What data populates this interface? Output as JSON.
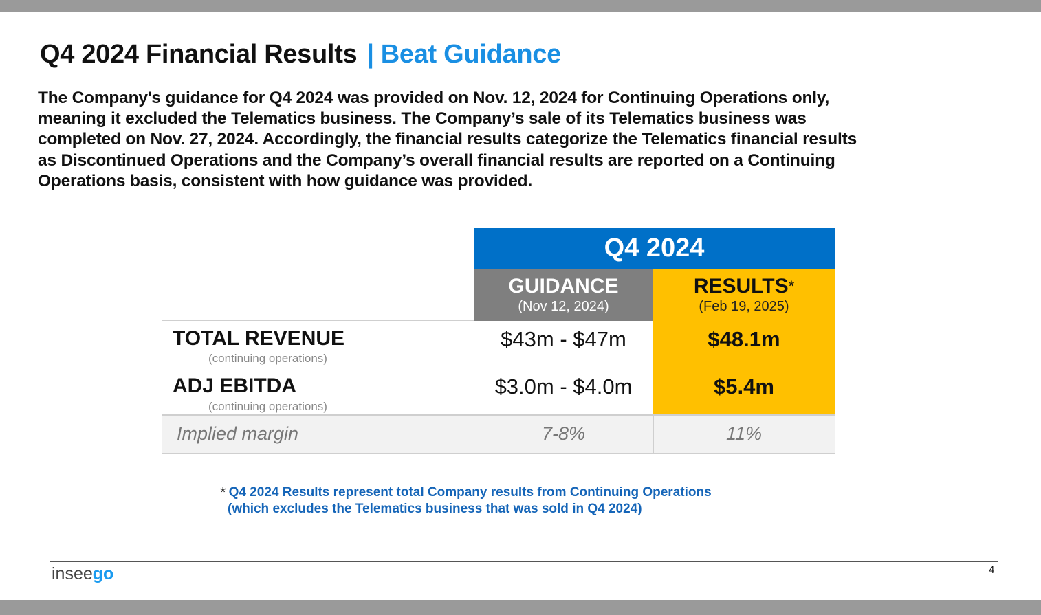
{
  "title": {
    "main": "Q4 2024 Financial Results",
    "separator": "|",
    "accent": "Beat Guidance"
  },
  "paragraph": [
    "The Company's guidance for Q4 2024 was provided on Nov. 12, 2024 for Continuing Operations only,",
    "meaning it excluded the Telematics business. The Company’s sale of its Telematics business was",
    "completed on Nov. 27, 2024. Accordingly, the financial results categorize the Telematics financial results",
    "as Discontinued Operations and the Company’s overall financial results are reported on a Continuing",
    "Operations basis, consistent with how guidance was provided."
  ],
  "table": {
    "period": "Q4 2024",
    "guidance": {
      "label": "GUIDANCE",
      "date": "(Nov 12, 2024)"
    },
    "results": {
      "label": "RESULTS",
      "marker": "*",
      "date": "(Feb 19, 2025)"
    },
    "rows": [
      {
        "label": "TOTAL REVENUE",
        "sub": "(continuing operations)",
        "guidance": "$43m - $47m",
        "result": "$48.1m"
      },
      {
        "label": "ADJ EBITDA",
        "sub": "(continuing operations)",
        "guidance": "$3.0m - $4.0m",
        "result": "$5.4m"
      }
    ],
    "implied": {
      "label": "Implied margin",
      "guidance": "7-8%",
      "result": "11%"
    }
  },
  "footnote": {
    "marker": "*",
    "line1": "Q4 2024 Results represent total Company results from Continuing Operations",
    "line2": "(which excludes the Telematics business that was sold in Q4 2024)"
  },
  "footer": {
    "logo": "inseego",
    "logo_a": "insee",
    "logo_b": "go",
    "page": "4"
  },
  "colors": {
    "blue": "#0070c8",
    "accent": "#1a8fe3",
    "gray": "#7f7f7f",
    "gold": "#ffc000"
  }
}
